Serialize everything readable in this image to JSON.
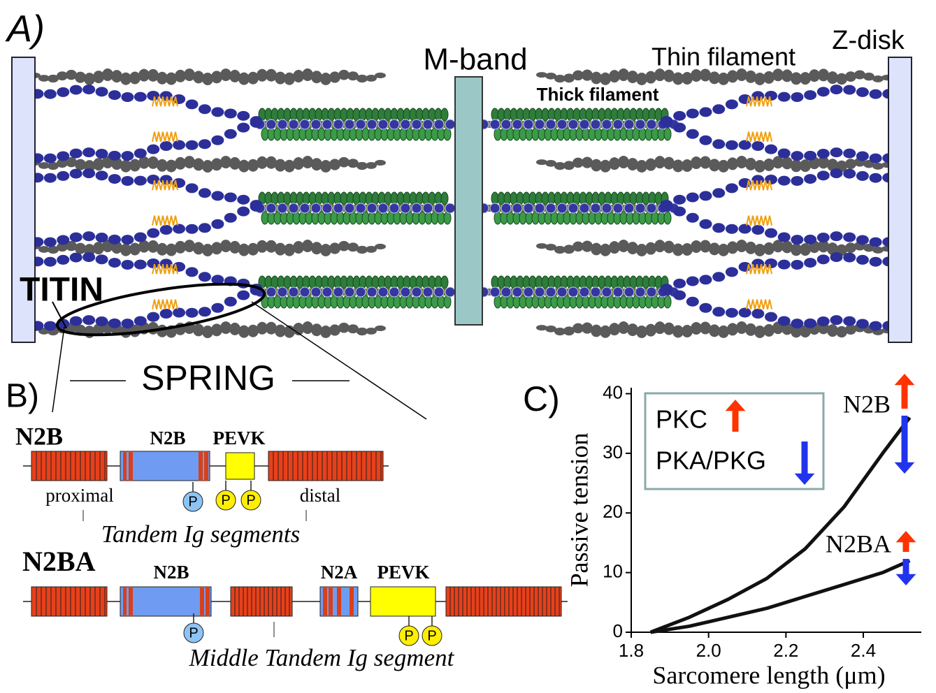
{
  "panel_a": {
    "label": "A)",
    "m_band": "M-band",
    "thin_filament": "Thin filament",
    "z_disk": "Z-disk",
    "thick_filament": "Thick filament",
    "titin": "TITIN"
  },
  "panel_b": {
    "label": "B)",
    "spring": "SPRING",
    "n2b_isoform": {
      "name": "N2B",
      "segments": [
        "N2B",
        "PEVK"
      ],
      "proximal": "proximal",
      "distal": "distal",
      "caption": "Tandem Ig segments",
      "phospho": [
        "P",
        "P",
        "P"
      ]
    },
    "n2ba_isoform": {
      "name": "N2BA",
      "segments": [
        "N2B",
        "N2A",
        "PEVK"
      ],
      "caption": "Middle Tandem Ig segment",
      "phospho": [
        "P",
        "P",
        "P"
      ]
    }
  },
  "chart_data": {
    "type": "line",
    "label": "C)",
    "x_label": "Sarcomere length (μm)",
    "y_label": "Passive tension",
    "x": [
      1.85,
      1.95,
      2.05,
      2.15,
      2.25,
      2.35,
      2.45,
      2.52
    ],
    "series": [
      {
        "name": "N2B",
        "color": "#111111",
        "values": [
          0,
          2.5,
          5.5,
          9,
          14,
          21,
          30,
          36
        ]
      },
      {
        "name": "N2BA",
        "color": "#111111",
        "values": [
          0,
          1,
          2.5,
          4,
          6,
          8,
          10,
          12
        ]
      }
    ],
    "xlim": [
      1.8,
      2.55
    ],
    "xticks": [
      1.8,
      {
        "value": 2,
        "label": "2.0"
      },
      2.2,
      2.4
    ],
    "ylim": [
      0,
      41
    ],
    "yticks": [
      0,
      10,
      20,
      30,
      40
    ],
    "legend": [
      {
        "label": "PKC",
        "color": "#ff3300"
      },
      {
        "label": "PKA/PKG",
        "color": "#2233ee"
      }
    ]
  }
}
